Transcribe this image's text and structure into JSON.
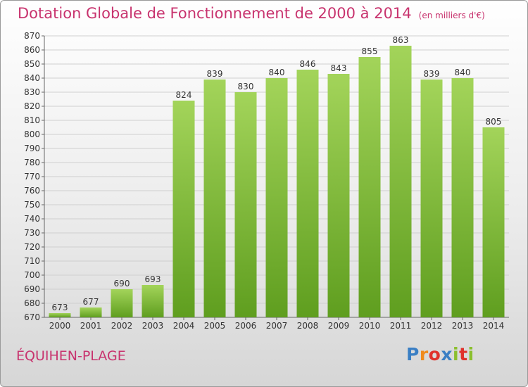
{
  "title": "Dotation Globale de Fonctionnement de 2000 à 2014",
  "subtitle": "(en milliers d'€)",
  "location": "ÉQUIHEN-PLAGE",
  "brand": {
    "letters": [
      "P",
      "r",
      "o",
      "x",
      "i",
      "t",
      "i"
    ],
    "colors": [
      "#3a7fc4",
      "#f08a1c",
      "#e0312b",
      "#3a7fc4",
      "#8bbf2e",
      "#e0312b",
      "#8bbf2e"
    ]
  },
  "colors": {
    "bar_top": "#a3d45a",
    "bar_bottom": "#5f9e1f",
    "grid": "#cfcfcf",
    "axis": "#666666",
    "title": "#c8336e"
  },
  "chart_data": {
    "type": "bar",
    "title": "Dotation Globale de Fonctionnement de 2000 à 2014",
    "subtitle": "(en milliers d'€)",
    "xlabel": "",
    "ylabel": "",
    "categories": [
      "2000",
      "2001",
      "2002",
      "2003",
      "2004",
      "2005",
      "2006",
      "2007",
      "2008",
      "2009",
      "2010",
      "2011",
      "2012",
      "2013",
      "2014"
    ],
    "values": [
      673,
      677,
      690,
      693,
      824,
      839,
      830,
      840,
      846,
      843,
      855,
      863,
      839,
      840,
      805
    ],
    "ylim": [
      670,
      870
    ],
    "yticks": [
      670,
      680,
      690,
      700,
      710,
      720,
      730,
      740,
      750,
      760,
      770,
      780,
      790,
      800,
      810,
      820,
      830,
      840,
      850,
      860,
      870
    ],
    "grid": true,
    "legend": "none"
  }
}
